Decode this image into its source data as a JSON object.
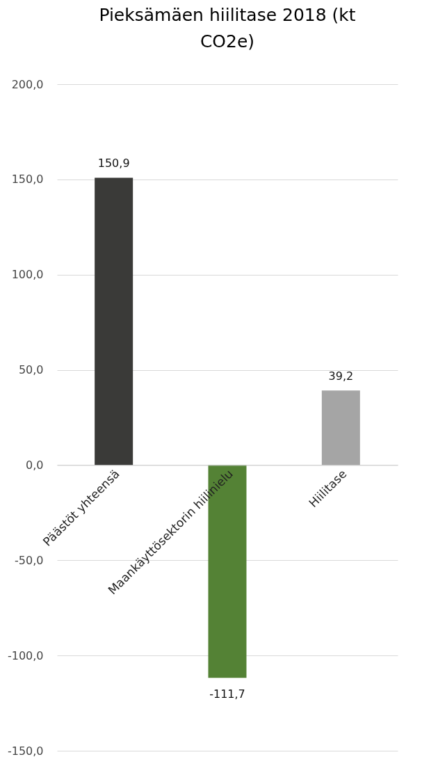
{
  "chart_data": {
    "type": "bar",
    "title": "Pieksämäen hiilitase 2018 (kt CO2e)",
    "categories": [
      "Päästöt yhteensä",
      "Maankäyttösektorin hiilinielu",
      "Hiilitase"
    ],
    "values": [
      150.9,
      -111.7,
      39.2
    ],
    "colors": [
      "#3a3a38",
      "#548235",
      "#a5a5a5"
    ],
    "value_labels": [
      "150,9",
      "-111,7",
      "39,2"
    ],
    "ylim": [
      -150,
      200
    ],
    "yticks": [
      {
        "value": -150,
        "label": "-150,0"
      },
      {
        "value": -100,
        "label": "-100,0"
      },
      {
        "value": -50,
        "label": "-50,0"
      },
      {
        "value": 0,
        "label": "0,0"
      },
      {
        "value": 50,
        "label": "50,0"
      },
      {
        "value": 100,
        "label": "100,0"
      },
      {
        "value": 150,
        "label": "150,0"
      },
      {
        "value": 200,
        "label": "200,0"
      }
    ],
    "grid": "y"
  }
}
